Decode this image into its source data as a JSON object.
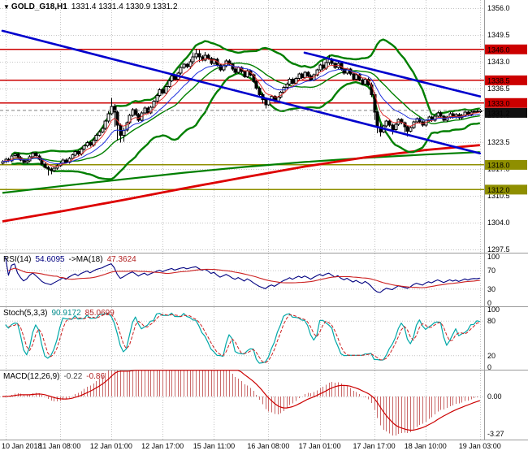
{
  "window": {
    "symbol": "GOLD_G18,H1",
    "ohlc": "1331.4 1331.4 1330.9 1331.2"
  },
  "icons": {
    "symbol_dropdown": "▼"
  },
  "colors": {
    "level_red": "#cc0000",
    "level_olive": "#8f8f00",
    "trend_blue": "#0000cd",
    "band_green": "#007f00",
    "ma_red": "#dd0000",
    "fast_red": "#e03030",
    "fast_blue": "#2030dd",
    "rsi_line": "#000080",
    "rsi_ma": "#cc2020",
    "stoch_k": "#00a8a8",
    "stoch_d": "#cc2020",
    "macd_bar": "#c96a6a",
    "macd_signal": "#cc0000",
    "grid": "#c4c4c4",
    "tag_current": "#111111",
    "candle_up": "#ffffff",
    "candle_down": "#000000"
  },
  "panels": {
    "rsi": {
      "name": "RSI(14)",
      "value": "54.6095",
      "ma_name": "->MA(18)",
      "ma_value": "47.3624",
      "axis": [
        {
          "v": 100,
          "label": "100"
        },
        {
          "v": 70,
          "label": "70"
        },
        {
          "v": 30,
          "label": "30"
        },
        {
          "v": 0,
          "label": "0"
        }
      ],
      "levels": [
        70,
        30
      ]
    },
    "stoch": {
      "name": "Stoch(5,3,3)",
      "value": "90.9172",
      "value2": "85.0699",
      "axis": [
        {
          "v": 100,
          "label": "100"
        },
        {
          "v": 80,
          "label": "80"
        },
        {
          "v": 20,
          "label": "20"
        },
        {
          "v": 0,
          "label": "0"
        }
      ],
      "levels": [
        80,
        20
      ]
    },
    "macd": {
      "name": "MACD(12,26,9)",
      "value": "-0.22",
      "value2": "-0.86",
      "axis": [
        {
          "v": 0,
          "label": "0.00"
        },
        {
          "v": -3.27,
          "label": "-3.27"
        }
      ]
    }
  },
  "chart_data": {
    "type": "candlestick",
    "symbol": "GOLD_G18",
    "timeframe": "H1",
    "title": "GOLD_G18,H1 1331.4 1331.4 1330.9 1331.2",
    "y_axis_ticks": [
      1356.0,
      1349.5,
      1343.0,
      1336.5,
      1330.0,
      1323.5,
      1317.0,
      1310.5,
      1304.0,
      1297.5
    ],
    "x_labels": [
      "10 Jan 2018",
      "11 Jan 08:00",
      "12 Jan 01:00",
      "12 Jan 17:00",
      "15 Jan 11:00",
      "16 Jan 08:00",
      "17 Jan 01:00",
      "17 Jan 17:00",
      "18 Jan 10:00",
      "19 Jan 03:00"
    ],
    "x_label_indices": [
      1,
      19,
      36,
      53,
      70,
      88,
      105,
      123,
      140,
      158
    ],
    "open_first": 1318.4,
    "closes": [
      1318.8,
      1319.4,
      1319.0,
      1320.2,
      1320.6,
      1319.8,
      1319.2,
      1318.6,
      1319.0,
      1320.0,
      1320.8,
      1320.2,
      1319.4,
      1318.2,
      1317.4,
      1317.0,
      1316.6,
      1317.2,
      1317.8,
      1318.4,
      1319.2,
      1318.6,
      1319.6,
      1320.4,
      1321.2,
      1320.6,
      1321.8,
      1322.6,
      1323.4,
      1322.8,
      1324.0,
      1325.2,
      1326.0,
      1326.8,
      1328.6,
      1330.4,
      1332.2,
      1330.8,
      1327.6,
      1325.2,
      1326.4,
      1328.2,
      1330.0,
      1331.4,
      1330.2,
      1328.8,
      1330.6,
      1331.8,
      1330.6,
      1332.0,
      1333.4,
      1334.8,
      1336.2,
      1335.4,
      1337.0,
      1338.4,
      1339.6,
      1338.8,
      1340.2,
      1341.6,
      1342.4,
      1341.8,
      1343.0,
      1344.2,
      1345.0,
      1344.2,
      1343.4,
      1344.6,
      1343.8,
      1342.6,
      1343.6,
      1342.2,
      1341.0,
      1342.0,
      1343.2,
      1342.4,
      1341.2,
      1340.4,
      1341.6,
      1340.6,
      1339.4,
      1340.8,
      1339.8,
      1338.2,
      1336.6,
      1335.0,
      1333.8,
      1332.6,
      1333.8,
      1334.6,
      1333.4,
      1334.4,
      1335.6,
      1336.8,
      1337.6,
      1338.8,
      1337.8,
      1339.0,
      1340.0,
      1339.2,
      1340.4,
      1339.6,
      1338.6,
      1339.8,
      1341.0,
      1342.2,
      1341.4,
      1342.8,
      1343.6,
      1342.6,
      1341.6,
      1342.6,
      1341.2,
      1340.2,
      1341.2,
      1340.0,
      1338.8,
      1339.8,
      1338.6,
      1337.6,
      1338.8,
      1337.4,
      1335.0,
      1330.8,
      1327.2,
      1326.0,
      1327.4,
      1328.6,
      1327.6,
      1326.6,
      1327.8,
      1329.0,
      1328.2,
      1327.2,
      1326.2,
      1327.0,
      1328.4,
      1329.2,
      1328.4,
      1327.6,
      1328.8,
      1329.6,
      1328.8,
      1329.8,
      1330.6,
      1329.8,
      1328.8,
      1329.6,
      1330.4,
      1329.6,
      1330.2,
      1329.4,
      1330.0,
      1330.8,
      1330.2,
      1330.8,
      1331.0,
      1330.9,
      1331.2
    ],
    "wick_overrides": {
      "15": [
        1317.8,
        1315.4
      ],
      "16": [
        1317.4,
        1315.7
      ],
      "35": [
        1331.0,
        1328.1
      ],
      "36": [
        1334.2,
        1330.0
      ],
      "37": [
        1332.8,
        1327.2
      ],
      "38": [
        1331.2,
        1323.9
      ],
      "39": [
        1328.0,
        1323.4
      ],
      "40": [
        1327.0,
        1323.6
      ],
      "62": [
        1343.6,
        1341.2
      ],
      "63": [
        1345.3,
        1342.4
      ],
      "64": [
        1346.2,
        1343.6
      ],
      "65": [
        1345.9,
        1342.9
      ],
      "67": [
        1345.4,
        1343.1
      ],
      "86": [
        1335.5,
        1332.9
      ],
      "87": [
        1334.2,
        1331.7
      ],
      "106": [
        1343.2,
        1340.9
      ],
      "107": [
        1344.2,
        1341.0
      ],
      "108": [
        1344.7,
        1342.2
      ],
      "122": [
        1338.0,
        1334.4
      ],
      "123": [
        1335.6,
        1328.9
      ],
      "124": [
        1331.2,
        1325.7
      ],
      "125": [
        1327.9,
        1324.9
      ],
      "129": [
        1328.0,
        1325.4
      ],
      "133": [
        1328.5,
        1325.9
      ],
      "134": [
        1327.5,
        1324.9
      ]
    },
    "horizontal_levels": [
      {
        "price": 1346.0,
        "style": "red"
      },
      {
        "price": 1338.5,
        "style": "red"
      },
      {
        "price": 1333.0,
        "style": "red"
      },
      {
        "price": 1318.0,
        "style": "olive"
      },
      {
        "price": 1312.0,
        "style": "olive"
      }
    ],
    "current_price": 1331.2,
    "trendlines": [
      {
        "i1": 0,
        "p1": 1350.5,
        "i2": 158,
        "p2": 1320.8
      },
      {
        "i1": 100,
        "p1": 1345.2,
        "i2": 158,
        "p2": 1334.6
      }
    ],
    "ma_red_slow": [
      [
        0,
        1304.3
      ],
      [
        20,
        1306.8
      ],
      [
        40,
        1309.5
      ],
      [
        60,
        1312.3
      ],
      [
        80,
        1315.0
      ],
      [
        100,
        1317.6
      ],
      [
        120,
        1319.8
      ],
      [
        140,
        1321.6
      ],
      [
        158,
        1322.8
      ]
    ],
    "ma_green_slow": [
      [
        0,
        1311.2
      ],
      [
        20,
        1312.9
      ],
      [
        40,
        1314.5
      ],
      [
        60,
        1316.1
      ],
      [
        80,
        1317.5
      ],
      [
        100,
        1318.7
      ],
      [
        120,
        1319.7
      ],
      [
        140,
        1320.5
      ],
      [
        158,
        1321.1
      ]
    ],
    "indicator_settings": {
      "bollinger": [
        20,
        2
      ],
      "rsi": [
        14,
        18
      ],
      "stoch": [
        5,
        3,
        3
      ],
      "macd": [
        12,
        26,
        9
      ],
      "fast_ma": [
        6,
        14
      ]
    }
  }
}
